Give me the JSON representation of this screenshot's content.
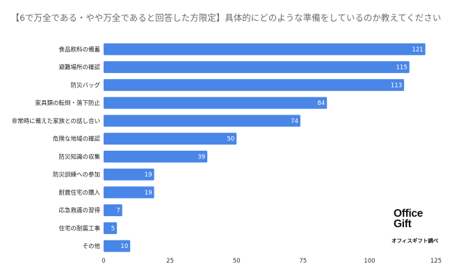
{
  "chart_data": {
    "type": "bar",
    "orientation": "horizontal",
    "title": "【6で万全である・やや万全であると回答した方限定】具体的にどのような準備をしているのか教えてください",
    "categories": [
      "食品飲料の備蓄",
      "避難場所の確認",
      "防災バッグ",
      "家具類の転倒・落下防止",
      "非常時に備えた家族との話し合い",
      "危険な地域の確認",
      "防災知識の収集",
      "防災訓練への参加",
      "耐震住宅の購入",
      "応急救護の習得",
      "住宅の耐震工事",
      "その他"
    ],
    "values": [
      121,
      115,
      113,
      84,
      74,
      50,
      39,
      19,
      19,
      7,
      5,
      10
    ],
    "xlim": [
      0,
      125
    ],
    "xticks": [
      0,
      25,
      50,
      75,
      100,
      125
    ],
    "bar_color": "#4a86e8",
    "grid": false,
    "data_labels": true
  },
  "logo": {
    "line1": "Office",
    "line2": "Gift",
    "source": "オフィスギフト調べ"
  }
}
